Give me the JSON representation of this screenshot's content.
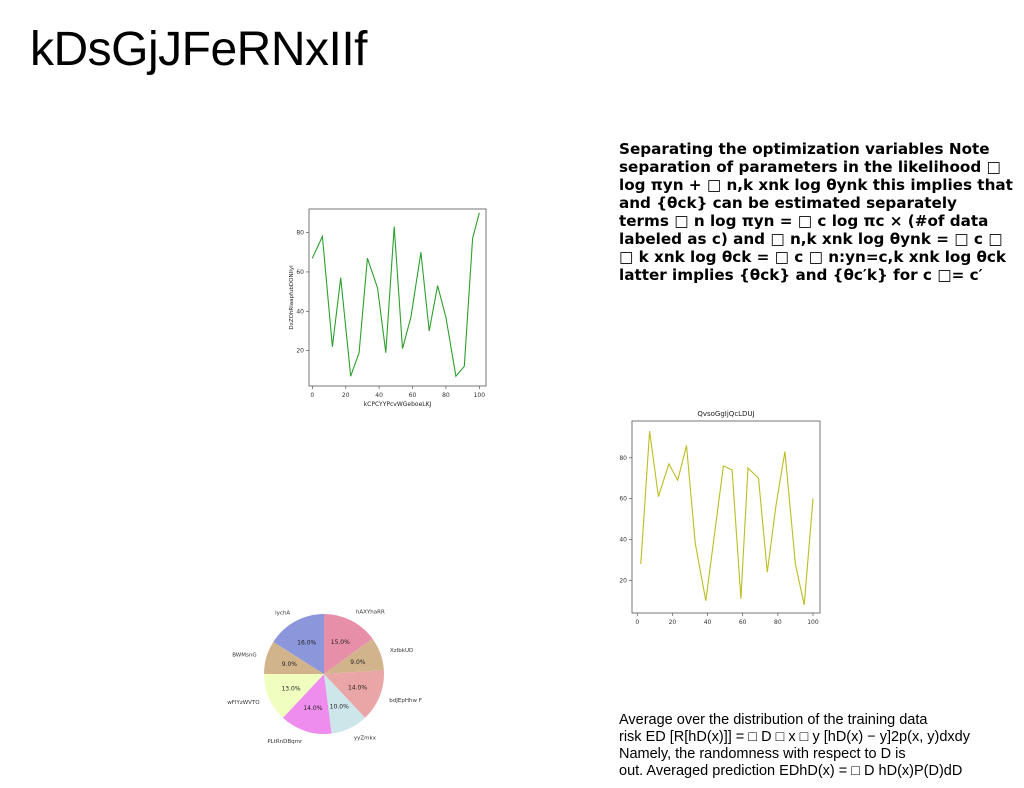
{
  "page": {
    "title": "kDsGjJFeRNxIIf",
    "paragraph_top": [
      "Separating the optimization variables Note",
      "separation of parameters in the likelihood □",
      "log πyn + □ n,k xnk log θynk this implies that",
      "and {θck} can be estimated separately",
      "terms □ n log πyn = □ c log πc × (#of data",
      "labeled as c) and □ n,k xnk log θynk = □ c □",
      "□ k xnk log θck = □ c □ n:yn=c,k xnk log θck",
      "latter implies {θck} and {θc′k} for c □= c′"
    ],
    "paragraph_bottom": [
      "Average over the distribution of the training data",
      "risk ED [R[hD(x)]] = □ D □ x □ y [hD(x) − y]2p(x, y)dxdy",
      "Namely, the randomness with respect to D is",
      "out. Averaged prediction EDhD(x) = □ D hD(x)P(D)dD"
    ]
  },
  "chart_data": [
    {
      "type": "line",
      "title": "",
      "xlabel": "kCPCYYPcvWGeboeLKJ",
      "ylabel": "DxZOhRlaapfubDONIIyl",
      "color": "#2ca02c",
      "xlim": [
        -2,
        104
      ],
      "ylim": [
        2,
        92
      ],
      "xticks": [
        0,
        20,
        40,
        60,
        80,
        100
      ],
      "yticks": [
        20,
        40,
        60,
        80
      ],
      "x": [
        0,
        6,
        12,
        17,
        23,
        28,
        33,
        39,
        44,
        49,
        54,
        59,
        65,
        70,
        75,
        80,
        86,
        91,
        96,
        100
      ],
      "y": [
        67,
        78,
        22,
        57,
        7,
        19,
        67,
        52,
        19,
        83,
        21,
        37,
        70,
        30,
        53,
        37,
        7,
        12,
        77,
        90
      ]
    },
    {
      "type": "line",
      "title": "QvsoGgIjQcLDUJ",
      "xlabel": "",
      "ylabel": "",
      "color": "#bcbd22",
      "xlim": [
        -3,
        104
      ],
      "ylim": [
        4,
        98
      ],
      "xticks": [
        0,
        20,
        40,
        60,
        80,
        100
      ],
      "yticks": [
        20,
        40,
        60,
        80
      ],
      "x": [
        2,
        7,
        12,
        18,
        23,
        28,
        33,
        39,
        49,
        54,
        59,
        63,
        69,
        74,
        79,
        84,
        90,
        95,
        100
      ],
      "y": [
        28,
        93,
        61,
        77,
        69,
        86,
        38,
        10,
        76,
        74,
        11,
        75,
        70,
        24,
        57,
        83,
        28,
        8,
        60
      ]
    },
    {
      "type": "pie",
      "slices": [
        {
          "label": "hAXYhaRR",
          "value": 15.0,
          "pct": "15.0%",
          "color": "#e78ea9"
        },
        {
          "label": "XzIbkUD",
          "value": 9.0,
          "pct": "9.0%",
          "color": "#d2b48c"
        },
        {
          "label": "bdJEpHhw F",
          "value": 14.0,
          "pct": "14.0%",
          "color": "#eaa6a6"
        },
        {
          "label": "yyZmkx",
          "value": 10.0,
          "pct": "10.0%",
          "color": "#cce6ea"
        },
        {
          "label": "PLtRnDBqmr",
          "value": 14.0,
          "pct": "14.0%",
          "color": "#ee8ded"
        },
        {
          "label": "wFlYzWVTO",
          "value": 13.0,
          "pct": "13.0%",
          "color": "#f0ffc0"
        },
        {
          "label": "BWMsnG",
          "value": 9.0,
          "pct": "9.0%",
          "color": "#d2b48c"
        },
        {
          "label": "lychA",
          "value": 16.0,
          "pct": "16.0%",
          "color": "#8b96db"
        }
      ]
    }
  ]
}
